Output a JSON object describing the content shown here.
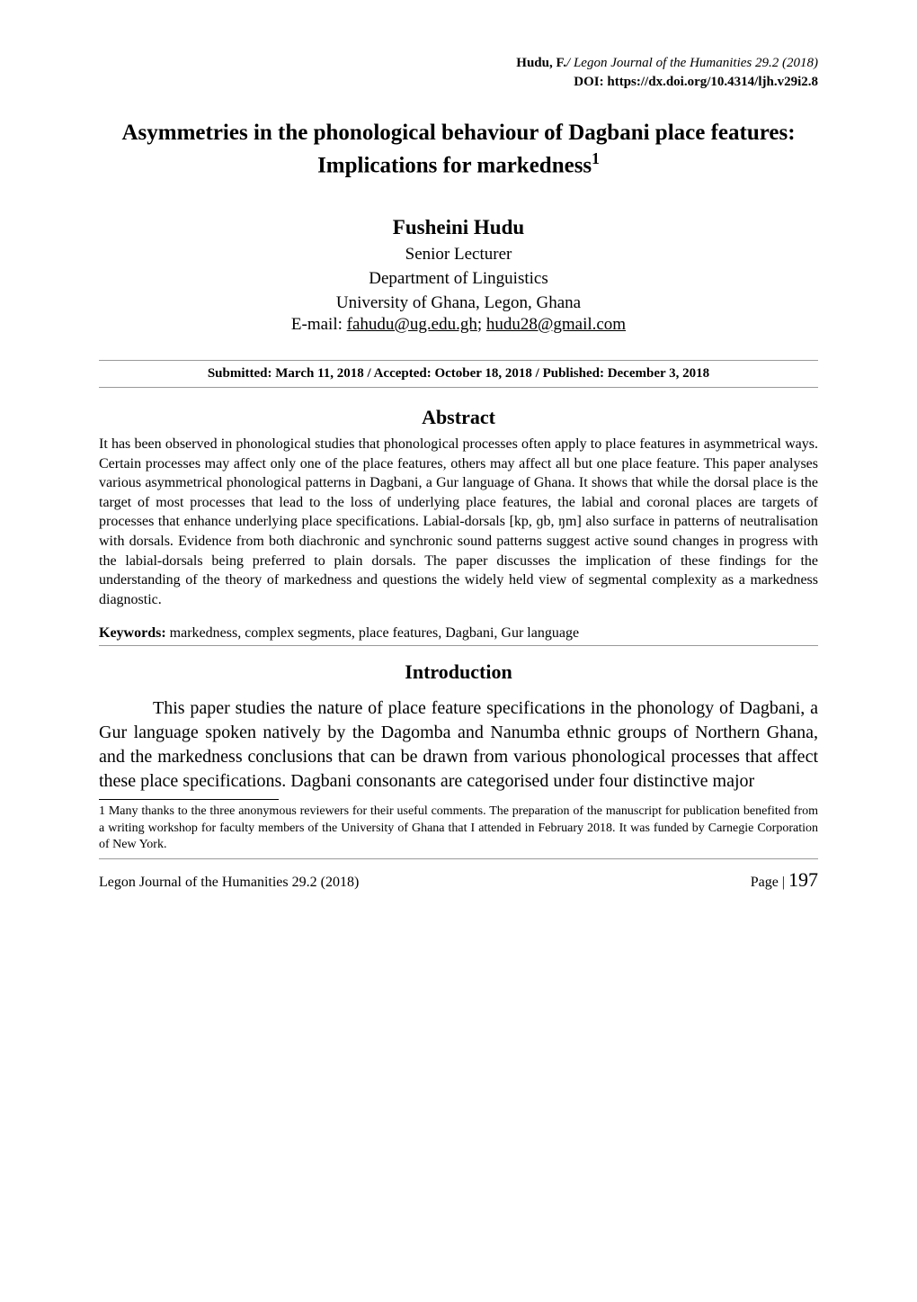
{
  "header": {
    "author_short": "Hudu, F.",
    "journal": "Legon Journal of the Humanities 29.2 (2018)",
    "doi_label": "DOI: https://dx.doi.org/10.4314/ljh.v29i2.8"
  },
  "title": "Asymmetries in the phonological behaviour of Dagbani place features: Implications for markedness",
  "title_sup": "1",
  "author": {
    "name": "Fusheini Hudu",
    "position": "Senior Lecturer",
    "department": "Department of Linguistics",
    "affiliation": "University of Ghana, Legon, Ghana",
    "email_prefix": "E-mail: ",
    "email1": "fahudu@ug.edu.gh",
    "email_sep": "; ",
    "email2": "hudu28@gmail.com"
  },
  "submission": "Submitted:  March 11, 2018 / Accepted: October 18, 2018 / Published: December 3, 2018",
  "abstract": {
    "heading": "Abstract",
    "text": "It has been observed in phonological studies that phonological processes often apply to place features in asymmetrical ways. Certain processes may affect only one of the place features, others may affect all but one place feature. This paper analyses various asymmetrical phonological patterns in Dagbani, a Gur language of Ghana. It shows that while the dorsal place is the target of most processes that lead to the loss of underlying place features, the labial and coronal places are targets of processes that enhance underlying place specifications. Labial-dorsals [kp, ɡb, ŋm] also surface in patterns of neutralisation with dorsals. Evidence from both diachronic and synchronic sound patterns suggest active sound changes in progress with the labial-dorsals being preferred to plain dorsals. The paper discusses the implication of these findings for the understanding of the theory of markedness and questions the widely held view of segmental complexity as a markedness diagnostic."
  },
  "keywords": {
    "label": "Keywords:",
    "text": " markedness, complex segments, place features, Dagbani, Gur language"
  },
  "introduction": {
    "heading": "Introduction",
    "text": "This paper studies the nature of place feature specifications in the phonology of Dagbani, a Gur language spoken natively by the Dagomba and Nanumba ethnic groups of Northern Ghana, and the markedness conclusions that can be drawn from various phonological processes that affect these place specifications. Dagbani consonants are categorised under four distinctive major"
  },
  "footnote": {
    "marker": "1",
    "text": "   Many thanks to the three anonymous reviewers for their useful comments. The preparation of the manuscript for publication benefited from a writing workshop for faculty members of the University of Ghana that I attended in February 2018. It was funded by Carnegie Corporation of New York."
  },
  "footer": {
    "left": "Legon Journal of the Humanities 29.2 (2018)",
    "right_label": "Page | ",
    "page_num": "197"
  },
  "colors": {
    "text": "#000000",
    "background": "#ffffff",
    "rule": "#999999"
  }
}
